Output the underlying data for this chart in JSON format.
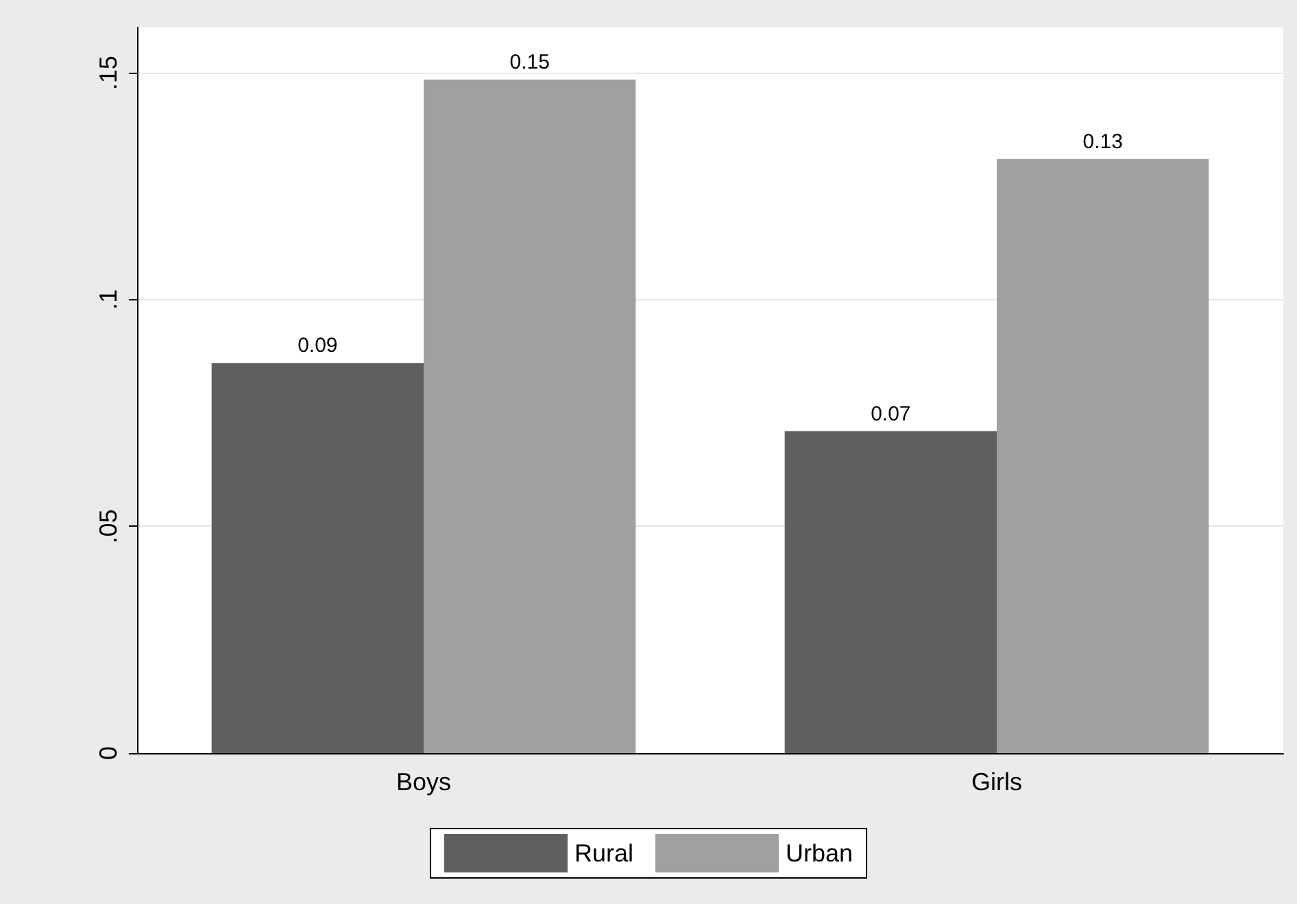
{
  "chart_data": {
    "type": "bar",
    "categories": [
      "Boys",
      "Girls"
    ],
    "series": [
      {
        "name": "Rural",
        "color": "#5f5f5f",
        "values": [
          0.086,
          0.071
        ],
        "value_labels": [
          "0.09",
          "0.07"
        ]
      },
      {
        "name": "Urban",
        "color": "#a0a0a0",
        "values": [
          0.1485,
          0.131
        ],
        "value_labels": [
          "0.15",
          "0.13"
        ]
      }
    ],
    "ylim": [
      0,
      0.16
    ],
    "yticks": [
      {
        "value": 0,
        "label": "0"
      },
      {
        "value": 0.05,
        "label": ".05"
      },
      {
        "value": 0.1,
        "label": ".1"
      },
      {
        "value": 0.15,
        "label": ".15"
      }
    ],
    "grid": "y",
    "legend": "bottom"
  }
}
